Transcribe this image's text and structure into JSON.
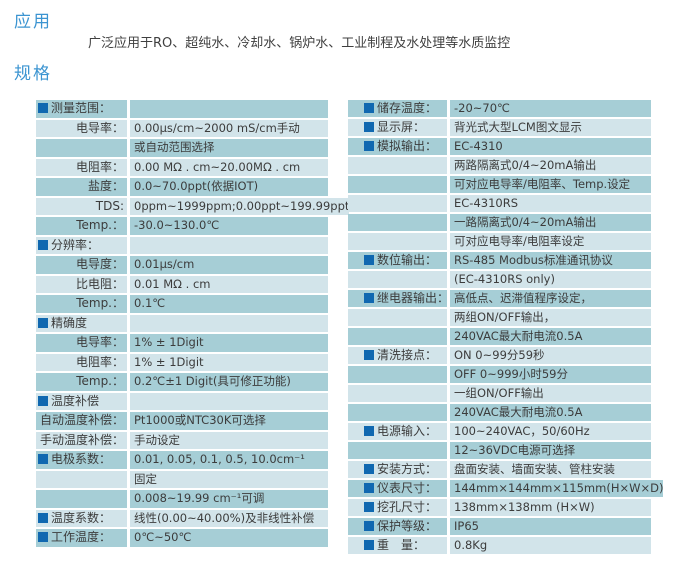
{
  "application": {
    "heading": "应用",
    "description": "广泛应用于RO、超纯水、冷却水、锅炉水、工业制程及水处理等水质监控"
  },
  "specification": {
    "heading": "规格"
  },
  "colors": {
    "row_dark": "#a6ced6",
    "row_light": "#d2e4ea",
    "bullet_blue": "#1068b0",
    "heading_blue": "#3b94d1",
    "text": "#3c3c3c"
  },
  "icons": {
    "bullet": "blue-square-icon"
  },
  "spec_table_left": {
    "rows": [
      {
        "bullet": true,
        "label": "测量范围：",
        "value": ""
      },
      {
        "bullet": false,
        "label": "电导率：",
        "value": "0.00μs/cm~2000 mS/cm手动"
      },
      {
        "bullet": false,
        "label": "",
        "value": "或自动范围选择"
      },
      {
        "bullet": false,
        "label": "电阻率：",
        "value": "0.00 MΩ . cm~20.00MΩ . cm"
      },
      {
        "bullet": false,
        "label": "盐度：",
        "value": "0.0~70.0ppt(依据IOT)"
      },
      {
        "bullet": false,
        "label": "TDS:",
        "value": "0ppm~1999ppm;0.00ppt~199.99ppt"
      },
      {
        "bullet": false,
        "label": "Temp.：",
        "value": "-30.0~130.0℃"
      },
      {
        "bullet": true,
        "label": "分辨率：",
        "value": ""
      },
      {
        "bullet": false,
        "label": "电导度：",
        "value": "0.01μs/cm"
      },
      {
        "bullet": false,
        "label": "比电阻：",
        "value": "0.01 MΩ . cm"
      },
      {
        "bullet": false,
        "label": "Temp.：",
        "value": "0.1℃"
      },
      {
        "bullet": true,
        "label": "精确度",
        "value": ""
      },
      {
        "bullet": false,
        "label": "电导率：",
        "value": "1% ± 1Digit"
      },
      {
        "bullet": false,
        "label": "电阻率：",
        "value": "1% ± 1Digit"
      },
      {
        "bullet": false,
        "label": "Temp.：",
        "value": "0.2℃±1 Digit(具可修正功能)"
      },
      {
        "bullet": true,
        "label": "温度补偿",
        "value": ""
      },
      {
        "bullet": false,
        "label": "自动温度补偿：",
        "value": "Pt1000或NTC30K可选择"
      },
      {
        "bullet": false,
        "label": "手动温度补偿：",
        "value": "手动设定"
      },
      {
        "bullet": true,
        "label": "电极系数：",
        "value": "0.01, 0.05, 0.1, 0.5, 10.0cm⁻¹"
      },
      {
        "bullet": false,
        "label": "",
        "value": "固定"
      },
      {
        "bullet": false,
        "label": "",
        "value": "0.008~19.99 cm⁻¹可调"
      },
      {
        "bullet": true,
        "label": "温度系数：",
        "value": "线性(0.00~40.00%)及非线性补偿"
      },
      {
        "bullet": true,
        "label": "工作温度：",
        "value": "0℃~50℃"
      }
    ]
  },
  "spec_table_right": {
    "rows": [
      {
        "bullet": true,
        "label": "储存温度：",
        "value": "-20~70℃"
      },
      {
        "bullet": true,
        "label": "显示屏：",
        "value": "背光式大型LCM图文显示"
      },
      {
        "bullet": true,
        "label": "模拟输出：",
        "value": "EC-4310"
      },
      {
        "bullet": false,
        "label": "",
        "value": "两路隔离式0/4~20mA输出"
      },
      {
        "bullet": false,
        "label": "",
        "value": "可对应电导率/电阻率、Temp.设定"
      },
      {
        "bullet": false,
        "label": "",
        "value": "EC-4310RS"
      },
      {
        "bullet": false,
        "label": "",
        "value": "一路隔离式0/4~20mA输出"
      },
      {
        "bullet": false,
        "label": "",
        "value": "可对应电导率/电阻率设定"
      },
      {
        "bullet": true,
        "label": "数位输出：",
        "value": "RS-485 Modbus标准通讯协议"
      },
      {
        "bullet": false,
        "label": "",
        "value": "(EC-4310RS only)"
      },
      {
        "bullet": true,
        "label": "继电器输出：",
        "value": "高低点、迟滞值程序设定，"
      },
      {
        "bullet": false,
        "label": "",
        "value": "两组ON/OFF输出，"
      },
      {
        "bullet": false,
        "label": "",
        "value": "240VAC最大耐电流0.5A"
      },
      {
        "bullet": true,
        "label": "清洗接点：",
        "value": "ON 0~99分59秒"
      },
      {
        "bullet": false,
        "label": "",
        "value": "OFF 0~999小时59分"
      },
      {
        "bullet": false,
        "label": "",
        "value": "一组ON/OFF输出"
      },
      {
        "bullet": false,
        "label": "",
        "value": "240VAC最大耐电流0.5A"
      },
      {
        "bullet": true,
        "label": "电源输入：",
        "value": "100~240VAC，50/60Hz"
      },
      {
        "bullet": false,
        "label": "",
        "value": "12~36VDC电源可选择"
      },
      {
        "bullet": true,
        "label": "安装方式：",
        "value": "盘面安装、墙面安装、管柱安装"
      },
      {
        "bullet": true,
        "label": "仪表尺寸：",
        "value": "144mm×144mm×115mm(H×W×D)"
      },
      {
        "bullet": true,
        "label": "挖孔尺寸：",
        "value": "138mm×138mm (H×W)"
      },
      {
        "bullet": true,
        "label": "保护等级：",
        "value": "IP65"
      },
      {
        "bullet": true,
        "label": "重　量：",
        "value": "0.8Kg"
      }
    ]
  }
}
